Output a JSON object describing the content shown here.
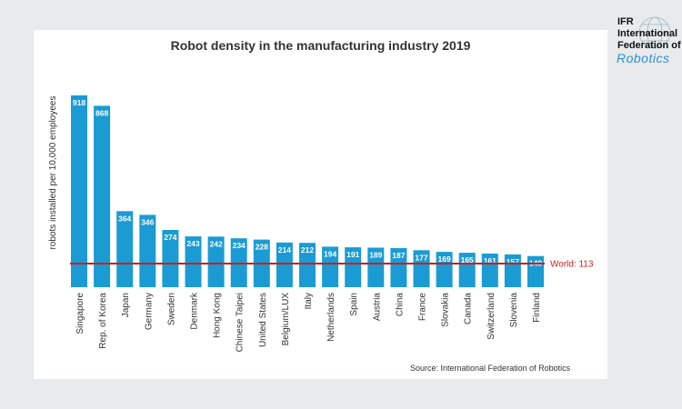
{
  "chart_data": {
    "type": "bar",
    "title": "Robot density in the manufacturing industry 2019",
    "ylabel": "robots installed per 10,000 employees",
    "xlabel": "",
    "ylim": [
      0,
      1000
    ],
    "categories": [
      "Singapore",
      "Rep. of Korea",
      "Japan",
      "Germany",
      "Sweden",
      "Denmark",
      "Hong Kong",
      "Chinese Taipei",
      "United States",
      "Belgium/LUX",
      "Italy",
      "Netherlands",
      "Spain",
      "Austria",
      "China",
      "France",
      "Slovakia",
      "Canada",
      "Switzerland",
      "Slovenia",
      "Finland"
    ],
    "values": [
      918,
      868,
      364,
      346,
      274,
      243,
      242,
      234,
      228,
      214,
      212,
      194,
      191,
      189,
      187,
      177,
      169,
      165,
      161,
      157,
      149
    ],
    "reference_line": {
      "label": "World: 113",
      "value": 113
    },
    "source": "Source: International Federation of Robotics",
    "grid": false,
    "legend": "none",
    "colors": {
      "bar": "#1b9bd4",
      "reference_line": "#cc1f1f",
      "bar_label": "#ffffff",
      "text": "#333333"
    }
  },
  "logo": {
    "line1": "IFR",
    "line2": "International",
    "line3": "Federation of",
    "line4": "Robotics"
  }
}
